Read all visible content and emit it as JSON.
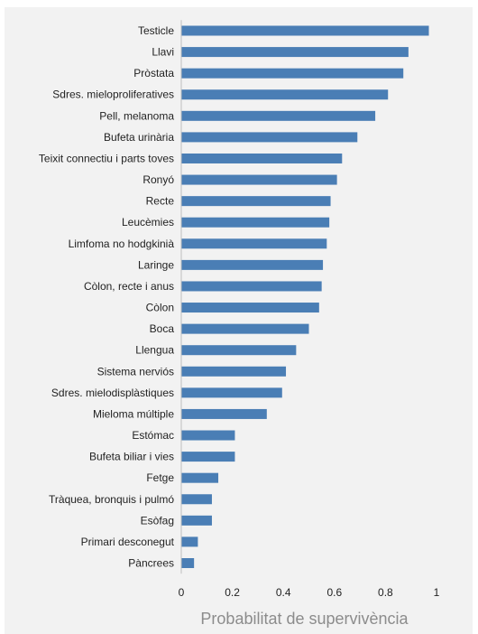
{
  "chart_data": {
    "type": "bar",
    "orientation": "horizontal",
    "title": "",
    "xlabel": "Probabilitat de supervivència",
    "ylabel": "",
    "xlim": [
      0,
      1
    ],
    "xticks": [
      "0",
      "0.2",
      "0.4",
      "0.6",
      "0.8",
      "1"
    ],
    "xtick_values": [
      0,
      0.2,
      0.4,
      0.6,
      0.8,
      1
    ],
    "grid": false,
    "legend": "none",
    "bar_color": "#4a7eb5",
    "panel_color": "#f2f2f2",
    "axis_color": "#bfbfbf",
    "categories": [
      "Testicle",
      "Llavi",
      "Pròstata",
      "Sdres. mieloproliferatives",
      "Pell, melanoma",
      "Bufeta urinària",
      "Teixit connectiu i parts toves",
      "Ronyó",
      "Recte",
      "Leucèmies",
      "Limfoma no hodgkinià",
      "Laringe",
      "Còlon, recte i anus",
      "Còlon",
      "Boca",
      "Llengua",
      "Sistema nerviós",
      "Sdres. mielodisplàstiques",
      "Mieloma múltiple",
      "Estómac",
      "Bufeta biliar i vies",
      "Fetge",
      "Tràquea, bronquis i pulmó",
      "Esòfag",
      "Primari desconegut",
      "Pàncrees"
    ],
    "values": [
      0.97,
      0.89,
      0.87,
      0.81,
      0.76,
      0.69,
      0.63,
      0.61,
      0.585,
      0.58,
      0.57,
      0.555,
      0.55,
      0.54,
      0.5,
      0.45,
      0.41,
      0.395,
      0.335,
      0.21,
      0.21,
      0.145,
      0.12,
      0.12,
      0.065,
      0.05
    ]
  }
}
